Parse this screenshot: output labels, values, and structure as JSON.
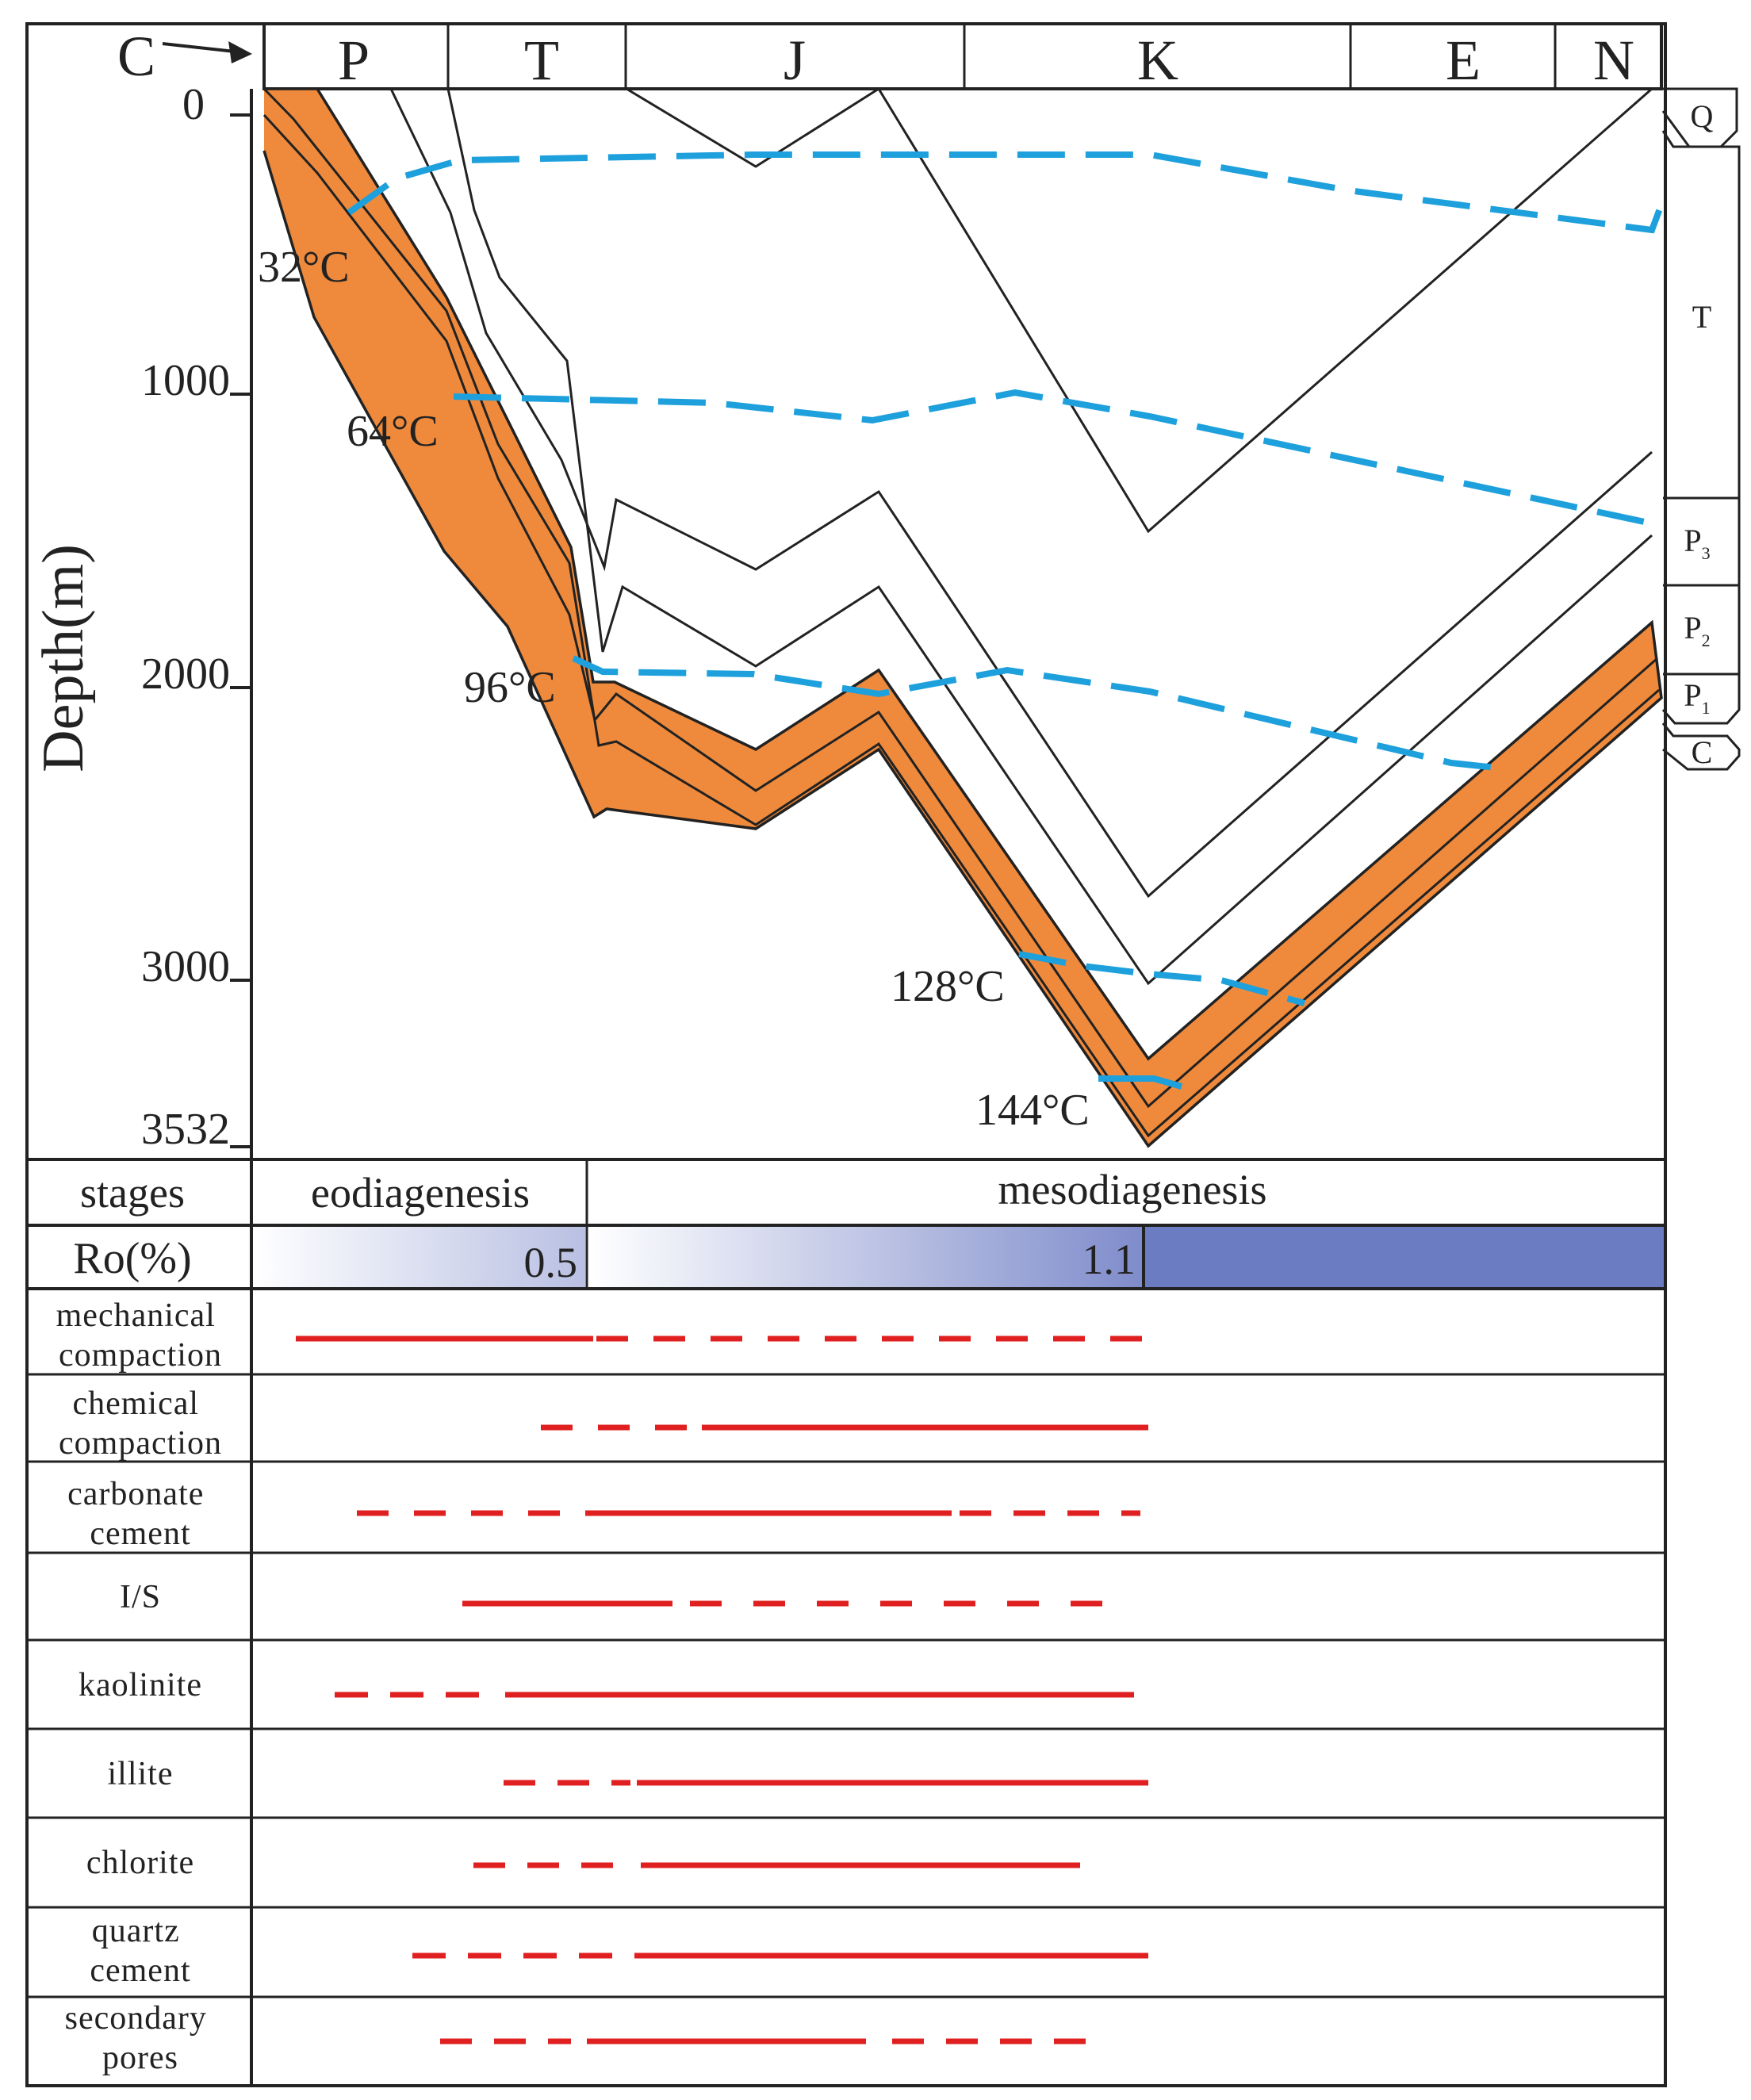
{
  "periods": [
    {
      "id": "C",
      "label": "C"
    },
    {
      "id": "P",
      "label": "P"
    },
    {
      "id": "T",
      "label": "T"
    },
    {
      "id": "J",
      "label": "J"
    },
    {
      "id": "K",
      "label": "K"
    },
    {
      "id": "E",
      "label": "E"
    },
    {
      "id": "N",
      "label": "N"
    }
  ],
  "depth_axis": {
    "label": "Depth(m)",
    "ticks": [
      "0",
      "1000",
      "2000",
      "3000",
      "3532"
    ]
  },
  "strata": {
    "Q": "Q",
    "T": "T",
    "P3": {
      "main": "P",
      "sub": "3"
    },
    "P2": {
      "main": "P",
      "sub": "2"
    },
    "P1": {
      "main": "P",
      "sub": "1"
    },
    "C": "C"
  },
  "isotherms": [
    "32°C",
    "64°C",
    "96°C",
    "128°C",
    "144°C"
  ],
  "stages": {
    "header": "stages",
    "eo": "eodiagenesis",
    "meso": "mesodiagenesis"
  },
  "ro": {
    "header": "Ro(%)",
    "v1": "0.5",
    "v2": "1.1"
  },
  "processes": [
    {
      "label_lines": [
        "mechanical",
        "compaction"
      ]
    },
    {
      "label_lines": [
        "chemical",
        "compaction"
      ]
    },
    {
      "label_lines": [
        "carbonate",
        "cement"
      ]
    },
    {
      "label_lines": [
        "I/S"
      ]
    },
    {
      "label_lines": [
        "kaolinite"
      ]
    },
    {
      "label_lines": [
        "illite"
      ]
    },
    {
      "label_lines": [
        "chlorite"
      ]
    },
    {
      "label_lines": [
        "quartz",
        "cement"
      ]
    },
    {
      "label_lines": [
        "secondary",
        "pores"
      ]
    }
  ],
  "colors": {
    "orange": "#ef8a3c",
    "isotherm": "#1ea0dc",
    "process": "#e02020",
    "ro_dark": "#6b7cc2"
  }
}
